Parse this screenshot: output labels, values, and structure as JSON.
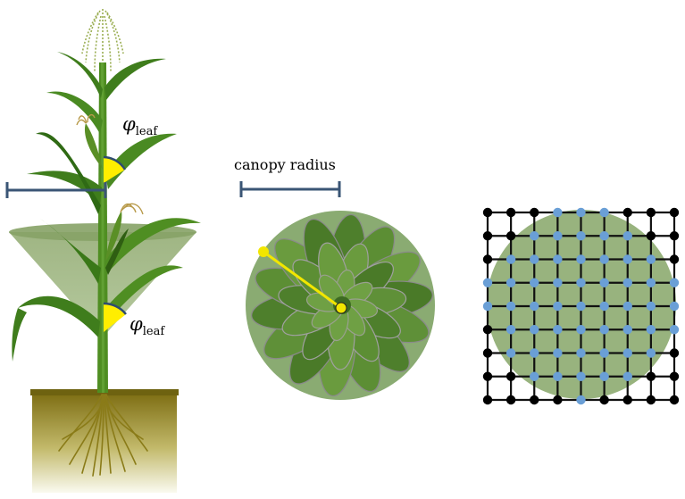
{
  "labels": {
    "phi_symbol": "φ",
    "phi_subscript": "leaf",
    "canopy_radius": "canopy radius"
  },
  "colors": {
    "stalk": "#4a8a1f",
    "leaf": "#3f7d1c",
    "leaf_light": "#5f9a2f",
    "cone": "#7e9c5c",
    "canopy_disk": "#8aab72",
    "soil_top": "#7a6a10",
    "soil_bottom": "#f6f5e6",
    "root": "#8a7a14",
    "angle_fill": "#ffee00",
    "angle_arc": "#2e4c70",
    "scale_bar": "#3a5575",
    "radius_line": "#f2e600",
    "grid_line": "#111111",
    "node_black": "#000000",
    "node_blue": "#6a9fd6",
    "grid_disk": "#98b37e"
  },
  "grid": {
    "columns": 9,
    "rows": 9,
    "covered_nodes_shown_blue": true
  },
  "icons": [
    "maize-plant-icon",
    "rosette-plant-icon",
    "lattice-grid-icon"
  ]
}
